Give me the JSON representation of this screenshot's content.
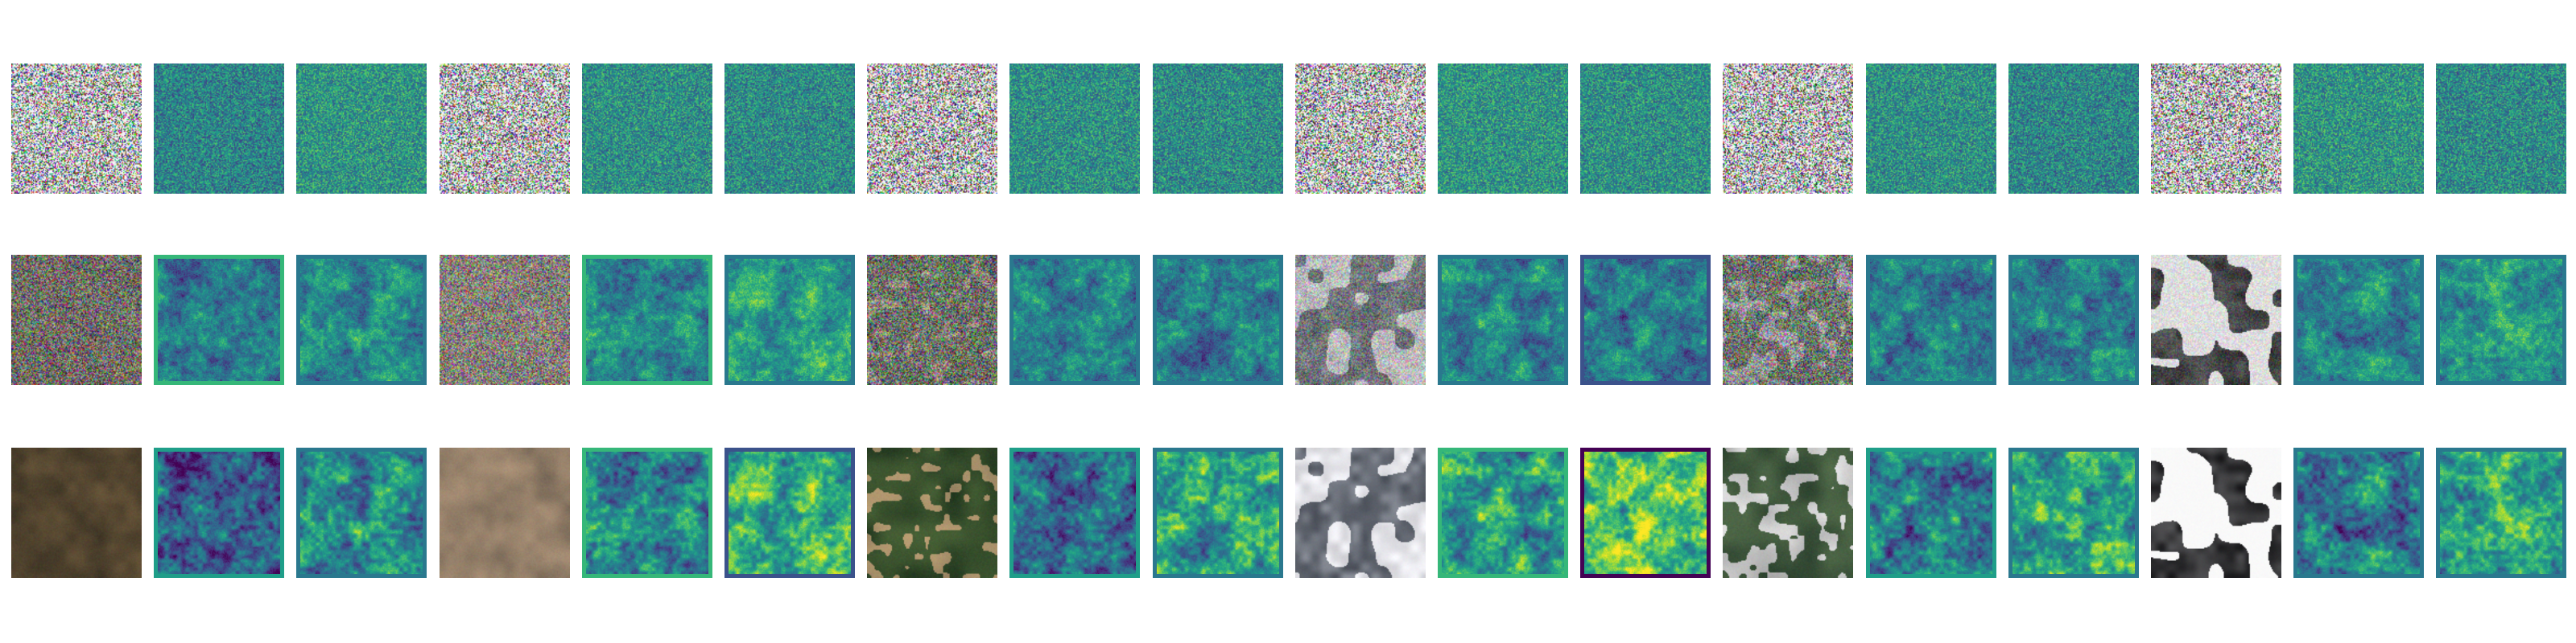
{
  "figure": {
    "rows": [
      {
        "stage": "pure-noise",
        "tiles": [
          {
            "kind": "rgb",
            "noise": 1.0,
            "scene": "noise-color",
            "frame": "none"
          },
          {
            "kind": "viridis",
            "noise": 1.0,
            "mean": 0.45,
            "frame": "none"
          },
          {
            "kind": "viridis",
            "noise": 1.0,
            "mean": 0.52,
            "frame": "none"
          },
          {
            "kind": "rgb",
            "noise": 1.0,
            "scene": "noise-color",
            "frame": "none"
          },
          {
            "kind": "viridis",
            "noise": 1.0,
            "mean": 0.5,
            "frame": "none"
          },
          {
            "kind": "viridis",
            "noise": 1.0,
            "mean": 0.48,
            "frame": "none"
          },
          {
            "kind": "rgb",
            "noise": 1.0,
            "scene": "noise-color",
            "frame": "none"
          },
          {
            "kind": "viridis",
            "noise": 1.0,
            "mean": 0.5,
            "frame": "none"
          },
          {
            "kind": "viridis",
            "noise": 1.0,
            "mean": 0.48,
            "frame": "none"
          },
          {
            "kind": "rgb",
            "noise": 1.0,
            "scene": "noise-color",
            "frame": "none"
          },
          {
            "kind": "viridis",
            "noise": 1.0,
            "mean": 0.52,
            "frame": "none"
          },
          {
            "kind": "viridis",
            "noise": 1.0,
            "mean": 0.5,
            "frame": "none"
          },
          {
            "kind": "rgb",
            "noise": 1.0,
            "scene": "noise-color",
            "frame": "none"
          },
          {
            "kind": "viridis",
            "noise": 1.0,
            "mean": 0.5,
            "frame": "none"
          },
          {
            "kind": "viridis",
            "noise": 1.0,
            "mean": 0.46,
            "frame": "none"
          },
          {
            "kind": "rgb",
            "noise": 1.0,
            "scene": "noise-color",
            "frame": "none"
          },
          {
            "kind": "viridis",
            "noise": 1.0,
            "mean": 0.52,
            "frame": "none"
          },
          {
            "kind": "viridis",
            "noise": 1.0,
            "mean": 0.48,
            "frame": "none"
          }
        ]
      },
      {
        "stage": "partially-denoised",
        "tiles": [
          {
            "kind": "rgb",
            "noise": 0.7,
            "scene": "dark-field",
            "frame": "none"
          },
          {
            "kind": "viridis",
            "noise": 0.45,
            "mean": 0.42,
            "frame": "#35b779"
          },
          {
            "kind": "viridis",
            "noise": 0.45,
            "mean": 0.48,
            "frame": "#2a788e"
          },
          {
            "kind": "rgb",
            "noise": 0.7,
            "scene": "brown-field",
            "frame": "none"
          },
          {
            "kind": "viridis",
            "noise": 0.45,
            "mean": 0.46,
            "frame": "#35b779"
          },
          {
            "kind": "viridis",
            "noise": 0.45,
            "mean": 0.55,
            "frame": "#2a788e"
          },
          {
            "kind": "rgb",
            "noise": 0.7,
            "scene": "green-field",
            "frame": "none"
          },
          {
            "kind": "viridis",
            "noise": 0.45,
            "mean": 0.47,
            "frame": "#2a788e"
          },
          {
            "kind": "viridis",
            "noise": 0.45,
            "mean": 0.42,
            "frame": "#2a788e"
          },
          {
            "kind": "rgb",
            "noise": 0.45,
            "scene": "snow",
            "frame": "none"
          },
          {
            "kind": "viridis",
            "noise": 0.45,
            "mean": 0.45,
            "frame": "#2a788e"
          },
          {
            "kind": "viridis",
            "noise": 0.45,
            "mean": 0.43,
            "frame": "#3b528b"
          },
          {
            "kind": "rgb",
            "noise": 0.7,
            "scene": "village",
            "frame": "none"
          },
          {
            "kind": "viridis",
            "noise": 0.45,
            "mean": 0.45,
            "frame": "#2a788e"
          },
          {
            "kind": "viridis",
            "noise": 0.45,
            "mean": 0.44,
            "frame": "#2a788e"
          },
          {
            "kind": "rgb",
            "noise": 0.25,
            "scene": "snow-bright",
            "frame": "none"
          },
          {
            "kind": "viridis",
            "noise": 0.45,
            "mean": 0.46,
            "frame": "#2a788e"
          },
          {
            "kind": "viridis",
            "noise": 0.45,
            "mean": 0.52,
            "frame": "#2a788e"
          }
        ]
      },
      {
        "stage": "generated",
        "tiles": [
          {
            "kind": "rgb",
            "noise": 0.05,
            "scene": "dark-field",
            "frame": "none"
          },
          {
            "kind": "viridis",
            "noise": 0.25,
            "mean": 0.3,
            "frame": "#1f9e89"
          },
          {
            "kind": "viridis",
            "noise": 0.25,
            "mean": 0.48,
            "frame": "#2a788e"
          },
          {
            "kind": "rgb",
            "noise": 0.05,
            "scene": "brown-field",
            "frame": "none"
          },
          {
            "kind": "viridis",
            "noise": 0.25,
            "mean": 0.45,
            "frame": "#35b779"
          },
          {
            "kind": "viridis",
            "noise": 0.25,
            "mean": 0.62,
            "frame": "#3b528b"
          },
          {
            "kind": "rgb",
            "noise": 0.05,
            "scene": "green-field",
            "frame": "none"
          },
          {
            "kind": "viridis",
            "noise": 0.25,
            "mean": 0.38,
            "frame": "#1f9e89"
          },
          {
            "kind": "viridis",
            "noise": 0.25,
            "mean": 0.58,
            "frame": "#2a788e"
          },
          {
            "kind": "rgb",
            "noise": 0.03,
            "scene": "snow",
            "frame": "none"
          },
          {
            "kind": "viridis",
            "noise": 0.25,
            "mean": 0.55,
            "frame": "#35b779"
          },
          {
            "kind": "viridis",
            "noise": 0.25,
            "mean": 0.75,
            "frame": "#440154"
          },
          {
            "kind": "rgb",
            "noise": 0.05,
            "scene": "village",
            "frame": "none"
          },
          {
            "kind": "viridis",
            "noise": 0.25,
            "mean": 0.45,
            "frame": "#1f9e89"
          },
          {
            "kind": "viridis",
            "noise": 0.25,
            "mean": 0.6,
            "frame": "#2a788e"
          },
          {
            "kind": "rgb",
            "noise": 0.02,
            "scene": "snow-bright",
            "frame": "none"
          },
          {
            "kind": "viridis",
            "noise": 0.25,
            "mean": 0.42,
            "frame": "#2a788e"
          },
          {
            "kind": "viridis",
            "noise": 0.25,
            "mean": 0.58,
            "frame": "#2a788e"
          }
        ]
      }
    ],
    "colormap": "viridis",
    "palette": {
      "background": "#ffffff",
      "viridis_dark": "#440154",
      "viridis_blue": "#3b528b",
      "viridis_teal": "#2a788e",
      "viridis_green": "#35b779",
      "viridis_yellow": "#fde725"
    }
  }
}
